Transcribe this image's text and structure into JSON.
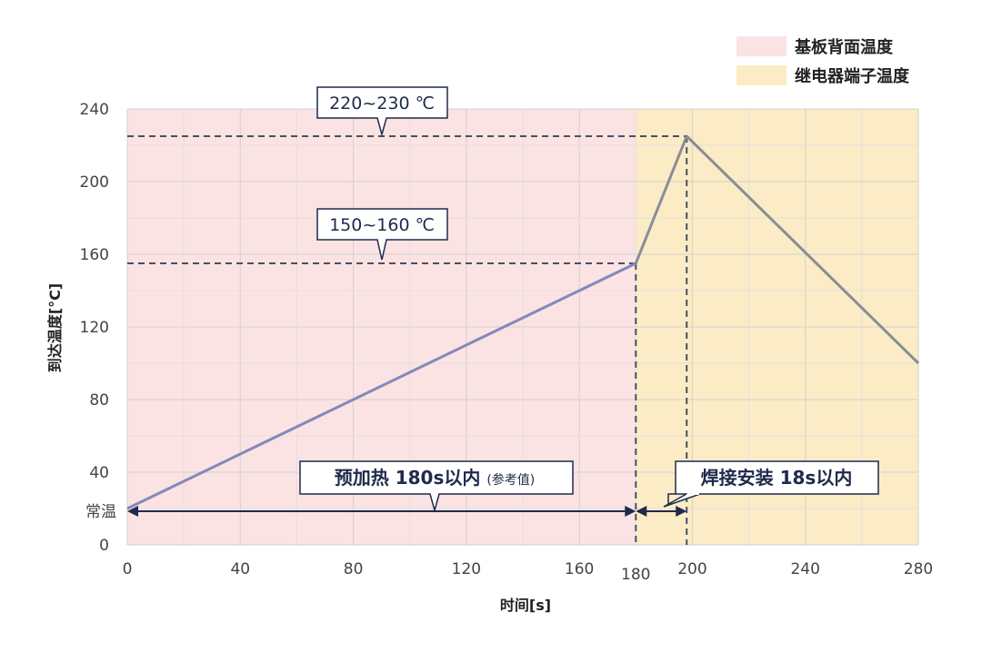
{
  "legend": {
    "board": {
      "label": "基板背面温度",
      "color": "#fbe3e4"
    },
    "relay": {
      "label": "继电器端子温度",
      "color": "#fbecc6"
    }
  },
  "chart_data": {
    "type": "line",
    "xlabel": "时间[s]",
    "ylabel": "到达温度[°C]",
    "xlim": [
      0,
      280
    ],
    "ylim": [
      0,
      240
    ],
    "x_ticks": [
      "0",
      "40",
      "80",
      "120",
      "160",
      "180",
      "200",
      "240",
      "280"
    ],
    "y_ticks": [
      "0",
      "40",
      "80",
      "120",
      "160",
      "200",
      "240"
    ],
    "grid": true,
    "regions": [
      {
        "name": "基板背面温度",
        "x": [
          0,
          180
        ]
      },
      {
        "name": "继电器端子温度",
        "x": [
          180,
          280
        ]
      }
    ],
    "series": [
      {
        "points": [
          [
            0,
            20
          ],
          [
            180,
            155
          ]
        ],
        "color": "#8488bb"
      },
      {
        "points": [
          [
            180,
            155
          ],
          [
            198,
            225
          ],
          [
            280,
            100
          ]
        ],
        "color": "#8a8d96"
      }
    ],
    "reference_lines": [
      {
        "y": 225,
        "label": "220~230 ℃"
      },
      {
        "y": 155,
        "label": "150~160 ℃"
      }
    ],
    "annotations": {
      "room_temp": "常温",
      "preheat_main": "预加热 180s以内",
      "preheat_note": "(参考值)",
      "solder": "焊接安装 18s以内"
    }
  }
}
